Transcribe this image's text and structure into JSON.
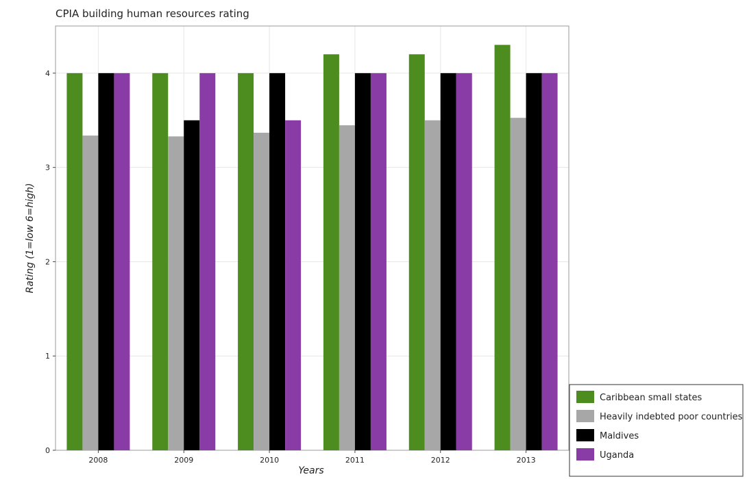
{
  "chart_data": {
    "type": "bar",
    "title": "CPIA building human resources rating",
    "xlabel": "Years",
    "ylabel": "Rating (1=low 6=high)",
    "ylim": [
      0,
      4.5
    ],
    "yticks": [
      "0",
      "1",
      "2",
      "3",
      "4"
    ],
    "categories": [
      "2008",
      "2009",
      "2010",
      "2011",
      "2012",
      "2013"
    ],
    "grid": true,
    "legend_position": "bottom-right",
    "series": [
      {
        "name": "Caribbean small states",
        "color": "#4d8c1f",
        "values": [
          4.0,
          4.0,
          4.0,
          4.2,
          4.2,
          4.3
        ]
      },
      {
        "name": "Heavily indebted poor countries",
        "color": "#a7a7a7",
        "values": [
          3.338,
          3.329,
          3.368,
          3.447,
          3.5,
          3.526
        ]
      },
      {
        "name": "Maldives",
        "color": "#000000",
        "values": [
          4.0,
          3.5,
          4.0,
          4.0,
          4.0,
          4.0
        ]
      },
      {
        "name": "Uganda",
        "color": "#8a3ca6",
        "values": [
          4.0,
          4.0,
          3.5,
          4.0,
          4.0,
          4.0
        ]
      }
    ]
  }
}
